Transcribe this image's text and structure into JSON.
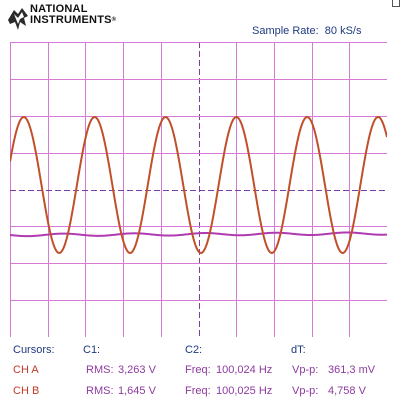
{
  "brand": {
    "line1": "NATIONAL",
    "line2": "INSTRUMENTS",
    "reg": "®"
  },
  "sample_rate": {
    "label": "Sample Rate:",
    "value": "80 kS/s"
  },
  "colors": {
    "grid": "#d67ad6",
    "grid_center": "#7a3ea6",
    "ch_a_trace": "#c0502a",
    "ch_b_trace": "#b03ab0",
    "header_text": "#1f3a80",
    "channel_text": "#c0392b",
    "value_text": "#8e3aa0"
  },
  "readout": {
    "headers": {
      "cursors": "Cursors:",
      "c1": "C1:",
      "c2": "C2:",
      "dt": "dT:"
    },
    "rows": [
      {
        "channel": "CH A",
        "rms_label": "RMS:",
        "rms": "3,263 V",
        "freq_label": "Freq:",
        "freq": "100,024 Hz",
        "vpp_label": "Vp-p:",
        "vpp": "361,3 mV"
      },
      {
        "channel": "CH B",
        "rms_label": "RMS:",
        "rms": "1,645 V",
        "freq_label": "Freq:",
        "freq": "100,025 Hz",
        "vpp_label": "Vp-p:",
        "vpp": "4,758 V"
      }
    ]
  }
}
